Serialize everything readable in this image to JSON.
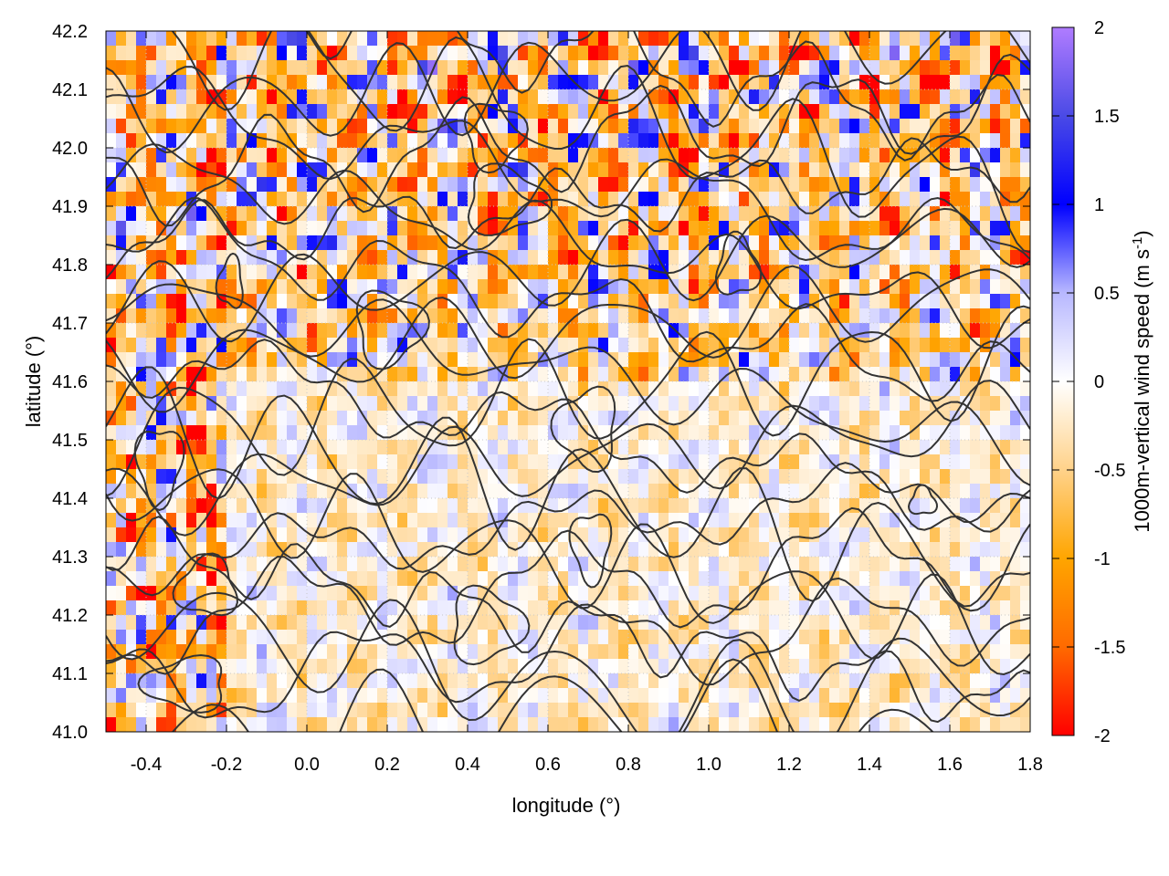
{
  "chart_data": {
    "type": "heatmap",
    "xlabel": "longitude (°)",
    "ylabel": "latitude (°)",
    "xlim": [
      -0.5,
      1.8
    ],
    "ylim": [
      41.0,
      42.2
    ],
    "x_ticks": [
      "-0.4",
      "-0.2",
      "0.0",
      "0.2",
      "0.4",
      "0.6",
      "0.8",
      "1.0",
      "1.2",
      "1.4",
      "1.6",
      "1.8"
    ],
    "y_ticks": [
      "41.0",
      "41.1",
      "41.2",
      "41.3",
      "41.4",
      "41.5",
      "41.6",
      "41.7",
      "41.8",
      "41.9",
      "42.0",
      "42.1",
      "42.2"
    ],
    "grid": true,
    "contours": true,
    "colorbar": {
      "label_main": "1000m-vertical wind speed (m s",
      "label_sup": "-1",
      "label_end": ")",
      "range": [
        -2,
        2
      ],
      "ticks": [
        "2",
        "1.5",
        "1",
        "0.5",
        "0",
        "-0.5",
        "-1",
        "-1.5",
        "-2"
      ],
      "colors": [
        "#ff0000",
        "#ff8c00",
        "#ffa500",
        "#ffcf80",
        "#ffffff",
        "#c8c8ff",
        "#0000ff",
        "#4040e0",
        "#b07cff"
      ]
    },
    "field_summary": {
      "north_region_lat_min": 41.6,
      "north_region_amplitude": 2.0,
      "south_region_amplitude": 0.6,
      "west_edge_lon_max": -0.2,
      "west_edge_amplitude": 2.0
    }
  }
}
